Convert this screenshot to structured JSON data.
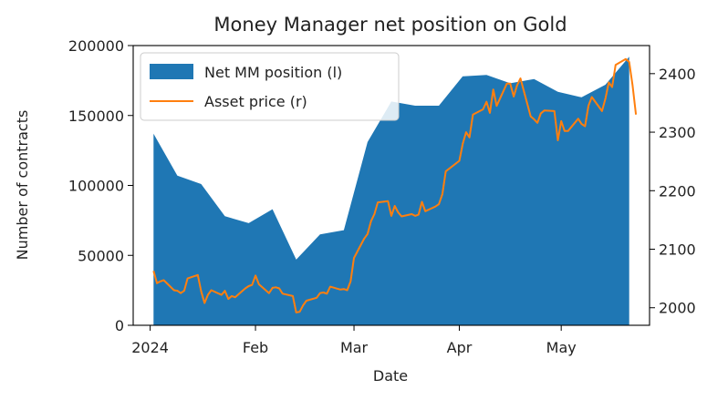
{
  "chart_data": {
    "type": "area",
    "title": "Money Manager net position on Gold",
    "xlabel": "Date",
    "ylabel": "Number of contracts",
    "y2label": "",
    "x_ticks": [
      {
        "date": "2024-01-01",
        "label": "2024"
      },
      {
        "date": "2024-02-01",
        "label": "Feb"
      },
      {
        "date": "2024-03-01",
        "label": "Mar"
      },
      {
        "date": "2024-04-01",
        "label": "Apr"
      },
      {
        "date": "2024-05-01",
        "label": "May"
      }
    ],
    "xlim": [
      "2023-12-27",
      "2024-05-27"
    ],
    "ylim": [
      0,
      200000
    ],
    "y_ticks": [
      0,
      50000,
      100000,
      150000,
      200000
    ],
    "y2lim": [
      1970,
      2448
    ],
    "y2_ticks": [
      2000,
      2100,
      2200,
      2300,
      2400
    ],
    "grid": false,
    "legend_position": "upper left",
    "series": [
      {
        "name": "Net MM position (l)",
        "axis": "left",
        "kind": "area",
        "color": "#1f77b4",
        "points": [
          [
            "2024-01-02",
            137000
          ],
          [
            "2024-01-09",
            107000
          ],
          [
            "2024-01-16",
            101000
          ],
          [
            "2024-01-23",
            78000
          ],
          [
            "2024-01-30",
            73000
          ],
          [
            "2024-02-06",
            83000
          ],
          [
            "2024-02-13",
            47000
          ],
          [
            "2024-02-20",
            65000
          ],
          [
            "2024-02-27",
            68000
          ],
          [
            "2024-03-05",
            131000
          ],
          [
            "2024-03-12",
            160000
          ],
          [
            "2024-03-19",
            157000
          ],
          [
            "2024-03-26",
            157000
          ],
          [
            "2024-04-02",
            178000
          ],
          [
            "2024-04-09",
            179000
          ],
          [
            "2024-04-16",
            173000
          ],
          [
            "2024-04-23",
            176000
          ],
          [
            "2024-04-30",
            167000
          ],
          [
            "2024-05-07",
            163000
          ],
          [
            "2024-05-14",
            172000
          ],
          [
            "2024-05-21",
            192000
          ]
        ]
      },
      {
        "name": "Asset price (r)",
        "axis": "right",
        "kind": "line",
        "color": "#ff7f0e",
        "points": [
          [
            "2024-01-02",
            2063
          ],
          [
            "2024-01-03",
            2042
          ],
          [
            "2024-01-04",
            2045
          ],
          [
            "2024-01-05",
            2047
          ],
          [
            "2024-01-08",
            2030
          ],
          [
            "2024-01-09",
            2029
          ],
          [
            "2024-01-10",
            2025
          ],
          [
            "2024-01-11",
            2029
          ],
          [
            "2024-01-12",
            2050
          ],
          [
            "2024-01-15",
            2056
          ],
          [
            "2024-01-16",
            2028
          ],
          [
            "2024-01-17",
            2008
          ],
          [
            "2024-01-18",
            2022
          ],
          [
            "2024-01-19",
            2030
          ],
          [
            "2024-01-22",
            2022
          ],
          [
            "2024-01-23",
            2029
          ],
          [
            "2024-01-24",
            2015
          ],
          [
            "2024-01-25",
            2020
          ],
          [
            "2024-01-26",
            2018
          ],
          [
            "2024-01-29",
            2033
          ],
          [
            "2024-01-30",
            2037
          ],
          [
            "2024-01-31",
            2039
          ],
          [
            "2024-02-01",
            2055
          ],
          [
            "2024-02-02",
            2040
          ],
          [
            "2024-02-05",
            2025
          ],
          [
            "2024-02-06",
            2034
          ],
          [
            "2024-02-07",
            2035
          ],
          [
            "2024-02-08",
            2033
          ],
          [
            "2024-02-09",
            2024
          ],
          [
            "2024-02-12",
            2020
          ],
          [
            "2024-02-13",
            1992
          ],
          [
            "2024-02-14",
            1993
          ],
          [
            "2024-02-15",
            2004
          ],
          [
            "2024-02-16",
            2012
          ],
          [
            "2024-02-19",
            2017
          ],
          [
            "2024-02-20",
            2025
          ],
          [
            "2024-02-21",
            2026
          ],
          [
            "2024-02-22",
            2024
          ],
          [
            "2024-02-23",
            2036
          ],
          [
            "2024-02-26",
            2031
          ],
          [
            "2024-02-27",
            2032
          ],
          [
            "2024-02-28",
            2030
          ],
          [
            "2024-02-29",
            2045
          ],
          [
            "2024-03-01",
            2085
          ],
          [
            "2024-03-04",
            2118
          ],
          [
            "2024-03-05",
            2126
          ],
          [
            "2024-03-06",
            2148
          ],
          [
            "2024-03-07",
            2160
          ],
          [
            "2024-03-08",
            2180
          ],
          [
            "2024-03-11",
            2182
          ],
          [
            "2024-03-12",
            2157
          ],
          [
            "2024-03-13",
            2174
          ],
          [
            "2024-03-14",
            2163
          ],
          [
            "2024-03-15",
            2156
          ],
          [
            "2024-03-18",
            2160
          ],
          [
            "2024-03-19",
            2157
          ],
          [
            "2024-03-20",
            2159
          ],
          [
            "2024-03-21",
            2181
          ],
          [
            "2024-03-22",
            2165
          ],
          [
            "2024-03-25",
            2173
          ],
          [
            "2024-03-26",
            2177
          ],
          [
            "2024-03-27",
            2194
          ],
          [
            "2024-03-28",
            2233
          ],
          [
            "2024-04-01",
            2251
          ],
          [
            "2024-04-02",
            2280
          ],
          [
            "2024-04-03",
            2300
          ],
          [
            "2024-04-04",
            2291
          ],
          [
            "2024-04-05",
            2330
          ],
          [
            "2024-04-08",
            2339
          ],
          [
            "2024-04-09",
            2352
          ],
          [
            "2024-04-10",
            2333
          ],
          [
            "2024-04-11",
            2373
          ],
          [
            "2024-04-12",
            2345
          ],
          [
            "2024-04-15",
            2383
          ],
          [
            "2024-04-16",
            2383
          ],
          [
            "2024-04-17",
            2361
          ],
          [
            "2024-04-18",
            2380
          ],
          [
            "2024-04-19",
            2392
          ],
          [
            "2024-04-22",
            2327
          ],
          [
            "2024-04-23",
            2322
          ],
          [
            "2024-04-24",
            2316
          ],
          [
            "2024-04-25",
            2332
          ],
          [
            "2024-04-26",
            2337
          ],
          [
            "2024-04-29",
            2336
          ],
          [
            "2024-04-30",
            2286
          ],
          [
            "2024-05-01",
            2319
          ],
          [
            "2024-05-02",
            2302
          ],
          [
            "2024-05-03",
            2302
          ],
          [
            "2024-05-06",
            2323
          ],
          [
            "2024-05-07",
            2314
          ],
          [
            "2024-05-08",
            2310
          ],
          [
            "2024-05-09",
            2345
          ],
          [
            "2024-05-10",
            2360
          ],
          [
            "2024-05-13",
            2336
          ],
          [
            "2024-05-14",
            2357
          ],
          [
            "2024-05-15",
            2385
          ],
          [
            "2024-05-16",
            2377
          ],
          [
            "2024-05-17",
            2415
          ],
          [
            "2024-05-20",
            2425
          ],
          [
            "2024-05-21",
            2420
          ],
          [
            "2024-05-22",
            2380
          ],
          [
            "2024-05-23",
            2330
          ]
        ]
      }
    ]
  }
}
